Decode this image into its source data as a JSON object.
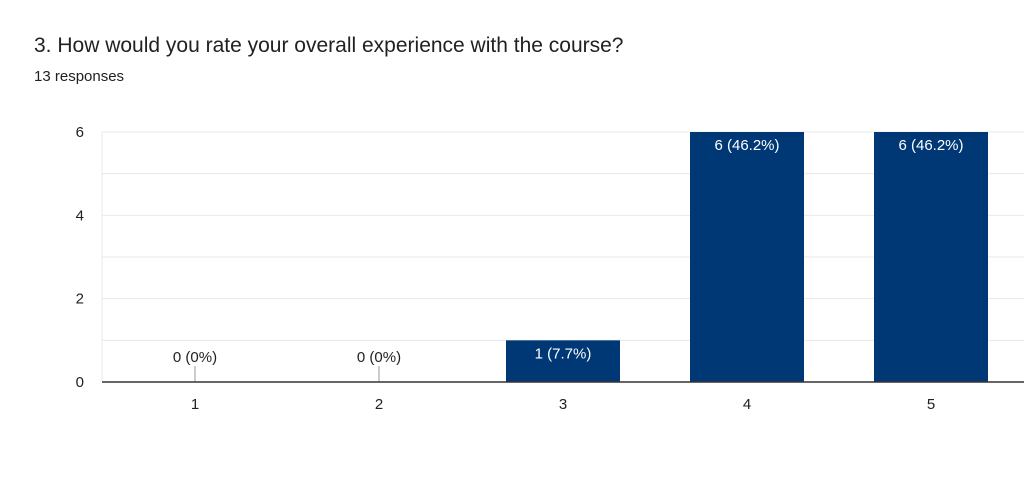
{
  "question": {
    "title": "3. How would you rate your overall experience with the course?",
    "responses": "13 responses"
  },
  "colors": {
    "bar": "#003875",
    "grid": "#e8eaed",
    "axis": "#333333",
    "label_inside": "#ffffff",
    "label_outside": "#202124"
  },
  "chart_data": {
    "type": "bar",
    "title": "3. How would you rate your overall experience with the course?",
    "xlabel": "",
    "ylabel": "",
    "categories": [
      "1",
      "2",
      "3",
      "4",
      "5"
    ],
    "values": [
      0,
      0,
      1,
      6,
      6
    ],
    "data_labels": [
      "0 (0%)",
      "0 (0%)",
      "1 (7.7%)",
      "6 (46.2%)",
      "6 (46.2%)"
    ],
    "ylim": [
      0,
      6
    ],
    "yticks": [
      0,
      2,
      4,
      6
    ],
    "grid": true,
    "legend": "none"
  }
}
